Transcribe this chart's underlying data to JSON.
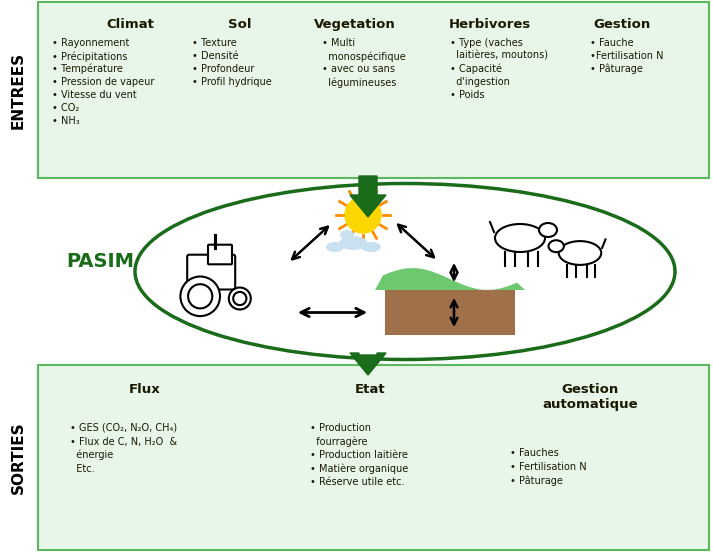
{
  "bg_color": "#ffffff",
  "box_color": "#e8f5e9",
  "border_color": "#5cb85c",
  "green_dark": "#1a6b1a",
  "arrow_color": "#1a6b1a",
  "pasim_color": "#1a6b1a",
  "title_color": "#1a1a00",
  "side_label_top": "ENTREES",
  "side_label_bottom": "SORTIES",
  "pasim_label": "PASIM",
  "top_headers": [
    "Climat",
    "Sol",
    "Vegetation",
    "Herbivores",
    "Gestion"
  ],
  "climat_items": [
    "• Rayonnement",
    "• Précipitations",
    "• Température",
    "• Pression de vapeur",
    "• Vitesse du vent",
    "• CO₂",
    "• NH₃"
  ],
  "sol_items": [
    "• Texture",
    "• Densité",
    "• Profondeur",
    "• Profil hydrique"
  ],
  "vegetation_items": [
    "• Multi",
    "  monospécifique",
    "• avec ou sans",
    "  légumineuses"
  ],
  "herbivores_items": [
    "• Type (vaches",
    "  laitières, moutons)",
    "• Capacité",
    "  d'ingestion",
    "• Poids"
  ],
  "gestion_items": [
    "• Fauche",
    "•Fertilisation N",
    "• Pâturage"
  ],
  "flux_items": [
    "• GES (CO₂, N₂O, CH₄)",
    "• Flux de C, N, H₂O  &",
    "  énergie",
    "  Etc."
  ],
  "etat_items": [
    "• Production",
    "  fourragère",
    "• Production laitière",
    "• Matière organique",
    "• Réserve utile etc."
  ],
  "gestion_auto_items": [
    "• Fauches",
    "• Fertilisation N",
    "• Pâturage"
  ],
  "soil_color": "#a0704a",
  "grass_color": "#6ec96e"
}
